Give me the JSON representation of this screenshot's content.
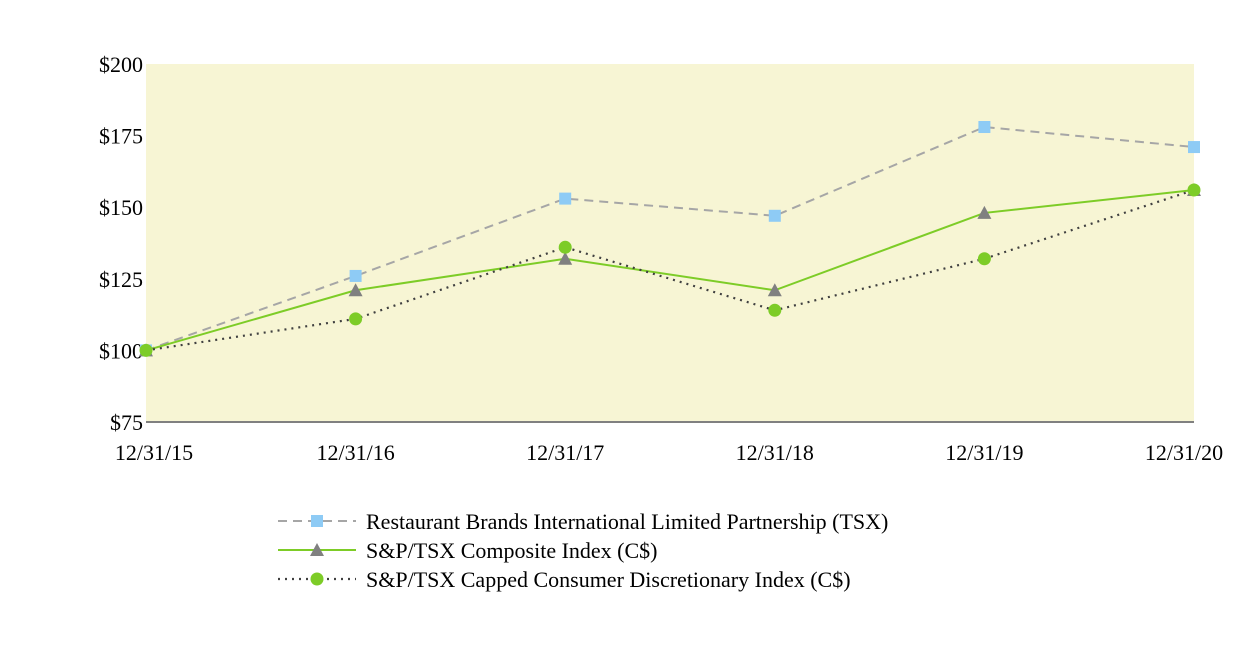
{
  "chart_data": {
    "type": "line",
    "title": "",
    "xlabel": "",
    "ylabel": "",
    "categories": [
      "12/31/15",
      "12/31/16",
      "12/31/17",
      "12/31/18",
      "12/31/19",
      "12/31/20"
    ],
    "ylim": [
      75,
      200
    ],
    "yticks": [
      75,
      100,
      125,
      150,
      175,
      200
    ],
    "ytick_labels": [
      "$75",
      "$100",
      "$125",
      "$150",
      "$175",
      "$200"
    ],
    "grid": false,
    "plot_background": "#f7f5d4",
    "legend_position": "bottom-center",
    "series": [
      {
        "name": "Restaurant Brands International Limited Partnership (TSX)",
        "values": [
          100,
          126,
          153,
          147,
          178,
          171
        ],
        "line_color": "#a6a6a6",
        "marker_color": "#8ecbf5",
        "line_style": "dashed",
        "marker": "square"
      },
      {
        "name": "S&P/TSX Composite Index (C$)",
        "values": [
          100,
          121,
          132,
          121,
          148,
          156
        ],
        "line_color": "#7dcc27",
        "marker_color": "#808080",
        "line_style": "solid",
        "marker": "triangle"
      },
      {
        "name": "S&P/TSX Capped Consumer Discretionary Index (C$)",
        "values": [
          100,
          111,
          136,
          114,
          132,
          156
        ],
        "line_color": "#404040",
        "marker_color": "#7dcc27",
        "line_style": "dotted",
        "marker": "circle"
      }
    ]
  }
}
